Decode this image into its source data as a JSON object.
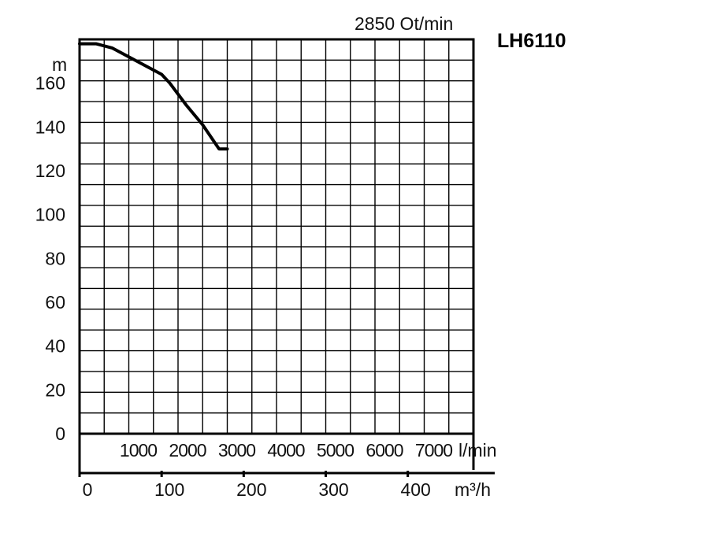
{
  "chart_data": {
    "type": "line",
    "title": "LH6110",
    "subtitle": "2850 Ot/min",
    "ylabel": "m",
    "ylim": [
      0,
      180
    ],
    "y_ticks": [
      "0",
      "20",
      "40",
      "60",
      "80",
      "100",
      "120",
      "140",
      "160"
    ],
    "xlim": [
      0,
      480
    ],
    "x_ticks_m3h": [
      "0",
      "100",
      "200",
      "300",
      "400"
    ],
    "x_ticks_m3h_values": [
      0,
      100,
      200,
      300,
      400
    ],
    "xlabel_m3h": "m³/h",
    "x_ticks_lmin": [
      "1000",
      "2000",
      "3000",
      "4000",
      "5000",
      "6000",
      "7000"
    ],
    "x_ticks_lmin_values": [
      1000,
      2000,
      3000,
      4000,
      5000,
      6000,
      7000
    ],
    "xlabel_lmin": "l/min",
    "grid": true,
    "series": [
      {
        "x": [
          0,
          20,
          40,
          60,
          80,
          100,
          110,
          130,
          150,
          170,
          180
        ],
        "y": [
          178,
          178,
          176,
          172,
          168,
          164,
          160,
          150,
          141,
          130,
          130
        ]
      }
    ],
    "line_color": "#000000"
  }
}
